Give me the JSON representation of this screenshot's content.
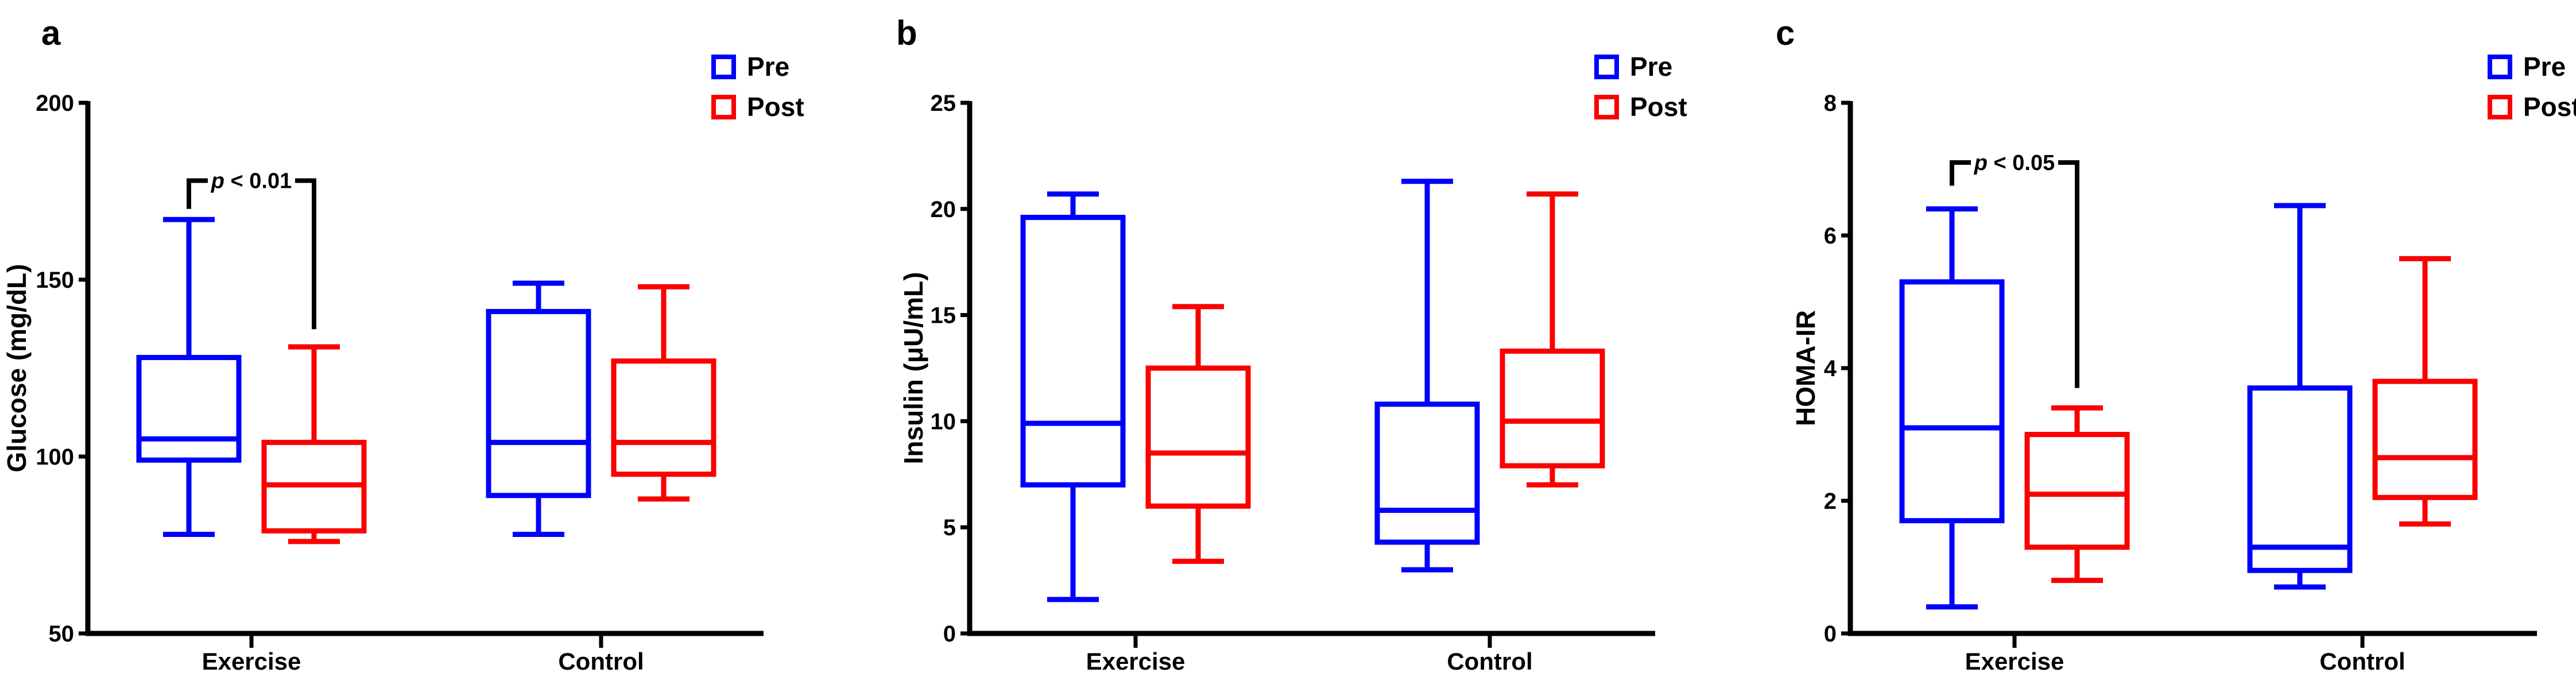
{
  "figure": {
    "description": "Three-panel box plot figure comparing Pre vs Post values in Exercise and Control groups",
    "legend_labels": [
      "Pre",
      "Post"
    ],
    "colors": {
      "pre": "#0000FE",
      "post": "#FB0000",
      "axis": "#000000"
    }
  },
  "chart_data": [
    {
      "type": "box",
      "panel_letter": "a",
      "ylabel": "Glucose (mg/dL)",
      "ylim": [
        50,
        200
      ],
      "yticks": [
        50,
        100,
        150,
        200
      ],
      "categories": [
        "Exercise",
        "Control"
      ],
      "legend_position": "top-right",
      "grid": false,
      "series": [
        {
          "name": "Pre",
          "color": "#0000FE",
          "boxes": [
            {
              "category": "Exercise",
              "min": 78,
              "q1": 99,
              "median": 105,
              "q3": 128,
              "max": 167
            },
            {
              "category": "Control",
              "min": 78,
              "q1": 89,
              "median": 104,
              "q3": 141,
              "max": 149
            }
          ]
        },
        {
          "name": "Post",
          "color": "#FB0000",
          "boxes": [
            {
              "category": "Exercise",
              "min": 76,
              "q1": 79,
              "median": 92,
              "q3": 104,
              "max": 131
            },
            {
              "category": "Control",
              "min": 88,
              "q1": 95,
              "median": 104,
              "q3": 127,
              "max": 148
            }
          ]
        }
      ],
      "significance": {
        "label": "p < 0.01",
        "compares": [
          "Exercise Pre",
          "Exercise Post"
        ],
        "bar_value": 178,
        "left_end_value": 170,
        "right_end_value": 136
      }
    },
    {
      "type": "box",
      "panel_letter": "b",
      "ylabel": "Insulin (μU/mL)",
      "ylim": [
        0,
        25
      ],
      "yticks": [
        0,
        5,
        10,
        15,
        20,
        25
      ],
      "categories": [
        "Exercise",
        "Control"
      ],
      "legend_position": "top-right",
      "grid": false,
      "series": [
        {
          "name": "Pre",
          "color": "#0000FE",
          "boxes": [
            {
              "category": "Exercise",
              "min": 1.6,
              "q1": 7.0,
              "median": 9.9,
              "q3": 19.6,
              "max": 20.7
            },
            {
              "category": "Control",
              "min": 3.0,
              "q1": 4.3,
              "median": 5.8,
              "q3": 10.8,
              "max": 21.3
            }
          ]
        },
        {
          "name": "Post",
          "color": "#FB0000",
          "boxes": [
            {
              "category": "Exercise",
              "min": 3.4,
              "q1": 6.0,
              "median": 8.5,
              "q3": 12.5,
              "max": 15.4
            },
            {
              "category": "Control",
              "min": 7.0,
              "q1": 7.9,
              "median": 10.0,
              "q3": 13.3,
              "max": 20.7
            }
          ]
        }
      ],
      "significance": null
    },
    {
      "type": "box",
      "panel_letter": "c",
      "ylabel": "HOMA-IR",
      "ylim": [
        0,
        8
      ],
      "yticks": [
        0,
        2,
        4,
        6,
        8
      ],
      "categories": [
        "Exercise",
        "Control"
      ],
      "legend_position": "top-right",
      "grid": false,
      "series": [
        {
          "name": "Pre",
          "color": "#0000FE",
          "boxes": [
            {
              "category": "Exercise",
              "min": 0.4,
              "q1": 1.7,
              "median": 3.1,
              "q3": 5.3,
              "max": 6.4
            },
            {
              "category": "Control",
              "min": 0.7,
              "q1": 0.95,
              "median": 1.3,
              "q3": 3.7,
              "max": 6.45
            }
          ]
        },
        {
          "name": "Post",
          "color": "#FB0000",
          "boxes": [
            {
              "category": "Exercise",
              "min": 0.8,
              "q1": 1.3,
              "median": 2.1,
              "q3": 3.0,
              "max": 3.4
            },
            {
              "category": "Control",
              "min": 1.65,
              "q1": 2.05,
              "median": 2.65,
              "q3": 3.8,
              "max": 5.65
            }
          ]
        }
      ],
      "significance": {
        "label": "p < 0.05",
        "compares": [
          "Exercise Pre",
          "Exercise Post"
        ],
        "bar_value": 7.1,
        "left_end_value": 6.75,
        "right_end_value": 3.7
      }
    }
  ]
}
